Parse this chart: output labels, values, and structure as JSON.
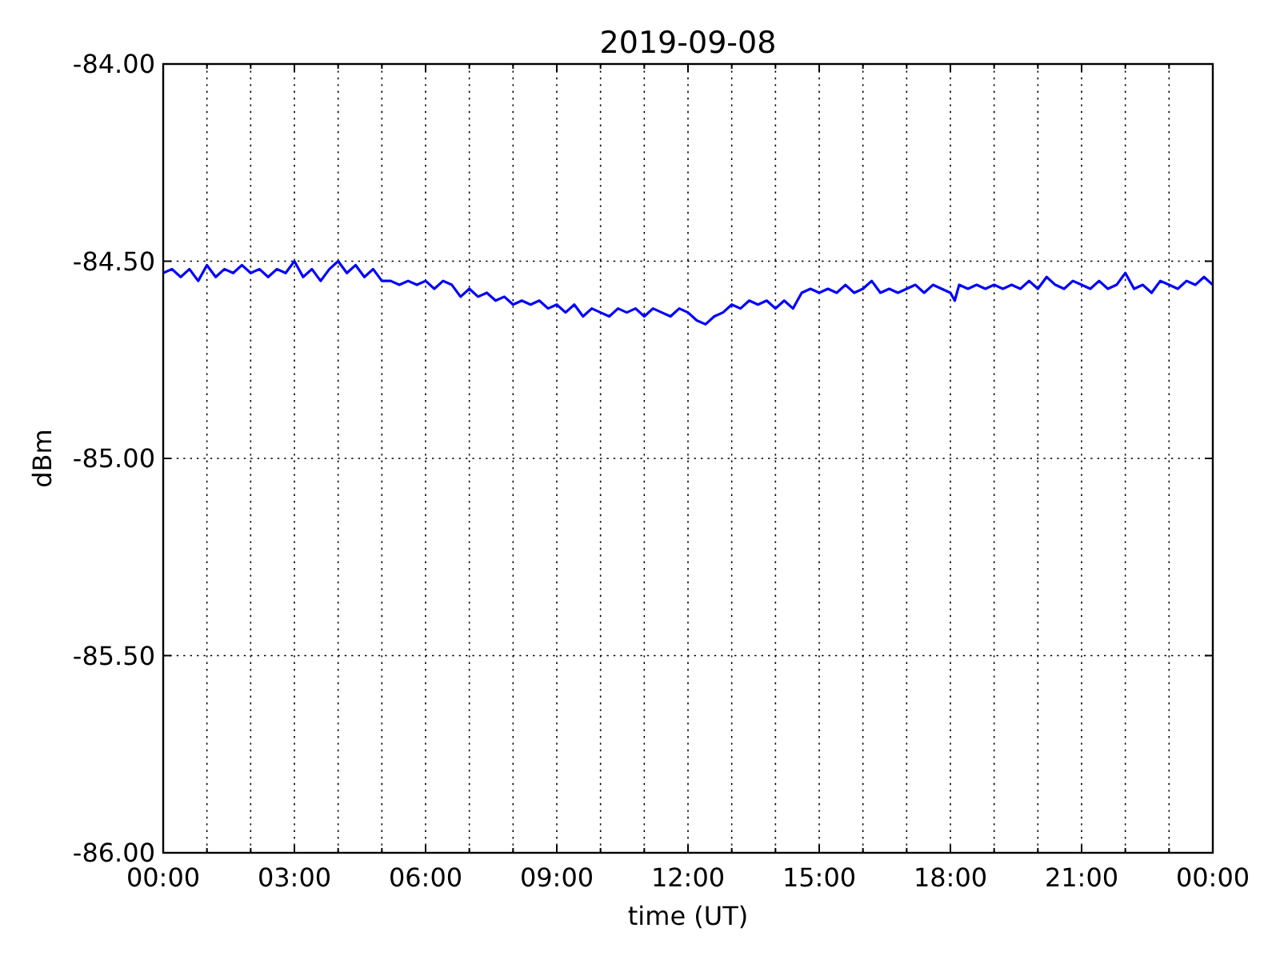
{
  "chart_data": {
    "type": "line",
    "title": "2019-09-08",
    "xlabel": "time (UT)",
    "ylabel": "dBm",
    "x": [
      0,
      0.2,
      0.4,
      0.6,
      0.8,
      1,
      1.2,
      1.4,
      1.6,
      1.8,
      2,
      2.2,
      2.4,
      2.6,
      2.8,
      3,
      3.2,
      3.4,
      3.6,
      3.8,
      4,
      4.2,
      4.4,
      4.6,
      4.8,
      5,
      5.2,
      5.4,
      5.6,
      5.8,
      6,
      6.2,
      6.4,
      6.6,
      6.8,
      7,
      7.2,
      7.4,
      7.6,
      7.8,
      8,
      8.2,
      8.4,
      8.6,
      8.8,
      9,
      9.2,
      9.4,
      9.6,
      9.8,
      10,
      10.2,
      10.4,
      10.6,
      10.8,
      11,
      11.2,
      11.4,
      11.6,
      11.8,
      12,
      12.2,
      12.4,
      12.6,
      12.8,
      13,
      13.2,
      13.4,
      13.6,
      13.8,
      14,
      14.2,
      14.4,
      14.6,
      14.8,
      15,
      15.2,
      15.4,
      15.6,
      15.8,
      16,
      16.2,
      16.4,
      16.6,
      16.8,
      17,
      17.2,
      17.4,
      17.6,
      17.8,
      18,
      18.1,
      18.2,
      18.4,
      18.6,
      18.8,
      19,
      19.2,
      19.4,
      19.6,
      19.8,
      20,
      20.2,
      20.4,
      20.6,
      20.8,
      21,
      21.2,
      21.4,
      21.6,
      21.8,
      22,
      22.2,
      22.4,
      22.6,
      22.8,
      23,
      23.2,
      23.4,
      23.6,
      23.8,
      24
    ],
    "series": [
      {
        "color": "#0000ff",
        "values": [
          -84.53,
          -84.52,
          -84.54,
          -84.52,
          -84.55,
          -84.51,
          -84.54,
          -84.52,
          -84.53,
          -84.51,
          -84.53,
          -84.52,
          -84.54,
          -84.52,
          -84.53,
          -84.5,
          -84.54,
          -84.52,
          -84.55,
          -84.52,
          -84.5,
          -84.53,
          -84.51,
          -84.54,
          -84.52,
          -84.55,
          -84.55,
          -84.56,
          -84.55,
          -84.56,
          -84.55,
          -84.57,
          -84.55,
          -84.56,
          -84.59,
          -84.57,
          -84.59,
          -84.58,
          -84.6,
          -84.59,
          -84.61,
          -84.6,
          -84.61,
          -84.6,
          -84.62,
          -84.61,
          -84.63,
          -84.61,
          -84.64,
          -84.62,
          -84.63,
          -84.64,
          -84.62,
          -84.63,
          -84.62,
          -84.64,
          -84.62,
          -84.63,
          -84.64,
          -84.62,
          -84.63,
          -84.65,
          -84.66,
          -84.64,
          -84.63,
          -84.61,
          -84.62,
          -84.6,
          -84.61,
          -84.6,
          -84.62,
          -84.6,
          -84.62,
          -84.58,
          -84.57,
          -84.58,
          -84.57,
          -84.58,
          -84.56,
          -84.58,
          -84.57,
          -84.55,
          -84.58,
          -84.57,
          -84.58,
          -84.57,
          -84.56,
          -84.58,
          -84.56,
          -84.57,
          -84.58,
          -84.6,
          -84.56,
          -84.57,
          -84.56,
          -84.57,
          -84.56,
          -84.57,
          -84.56,
          -84.57,
          -84.55,
          -84.57,
          -84.54,
          -84.56,
          -84.57,
          -84.55,
          -84.56,
          -84.57,
          -84.55,
          -84.57,
          -84.56,
          -84.53,
          -84.57,
          -84.56,
          -84.58,
          -84.55,
          -84.56,
          -84.57,
          -84.55,
          -84.56,
          -84.54,
          -84.56
        ]
      }
    ],
    "xlim": [
      0,
      24
    ],
    "ylim": [
      -86,
      -84
    ],
    "xticks": [
      {
        "value": 0,
        "label": "00:00"
      },
      {
        "value": 1,
        "label": null
      },
      {
        "value": 2,
        "label": null
      },
      {
        "value": 3,
        "label": "03:00"
      },
      {
        "value": 4,
        "label": null
      },
      {
        "value": 5,
        "label": null
      },
      {
        "value": 6,
        "label": "06:00"
      },
      {
        "value": 7,
        "label": null
      },
      {
        "value": 8,
        "label": null
      },
      {
        "value": 9,
        "label": "09:00"
      },
      {
        "value": 10,
        "label": null
      },
      {
        "value": 11,
        "label": null
      },
      {
        "value": 12,
        "label": "12:00"
      },
      {
        "value": 13,
        "label": null
      },
      {
        "value": 14,
        "label": null
      },
      {
        "value": 15,
        "label": "15:00"
      },
      {
        "value": 16,
        "label": null
      },
      {
        "value": 17,
        "label": null
      },
      {
        "value": 18,
        "label": "18:00"
      },
      {
        "value": 19,
        "label": null
      },
      {
        "value": 20,
        "label": null
      },
      {
        "value": 21,
        "label": "21:00"
      },
      {
        "value": 22,
        "label": null
      },
      {
        "value": 23,
        "label": null
      },
      {
        "value": 24,
        "label": "00:00"
      }
    ],
    "yticks": [
      {
        "value": -84,
        "label": "-84.00"
      },
      {
        "value": -84.5,
        "label": "-84.50"
      },
      {
        "value": -85,
        "label": "-85.00"
      },
      {
        "value": -85.5,
        "label": "-85.50"
      },
      {
        "value": -86,
        "label": "-86.00"
      }
    ],
    "grid": true
  }
}
